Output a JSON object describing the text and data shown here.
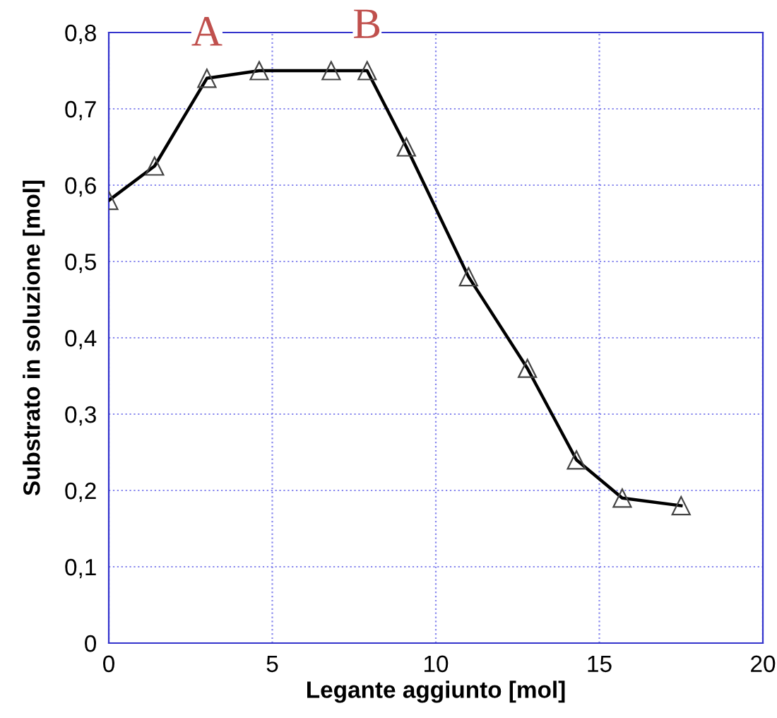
{
  "chart_data": {
    "type": "line",
    "xlabel": "Legante aggiunto [mol]",
    "ylabel": "Substrato in soluzione [mol]",
    "x": [
      0,
      1.4,
      3.0,
      4.6,
      6.8,
      7.9,
      9.1,
      11.0,
      12.8,
      14.3,
      15.7,
      17.5
    ],
    "series": [
      {
        "color": "#000000",
        "values": [
          0.58,
          0.625,
          0.74,
          0.75,
          0.75,
          0.75,
          0.65,
          0.48,
          0.36,
          0.24,
          0.19,
          0.18
        ]
      }
    ],
    "marker": "triangle",
    "grid": true,
    "xlim": [
      0,
      20
    ],
    "xticks": [
      0,
      5,
      10,
      15,
      20
    ],
    "ylim": [
      0,
      0.8
    ],
    "yticks": [
      0,
      {
        "value": 0.1,
        "label": "0,1"
      },
      {
        "value": 0.2,
        "label": "0,2"
      },
      {
        "value": 0.3,
        "label": "0,3"
      },
      {
        "value": 0.4,
        "label": "0,4"
      },
      {
        "value": 0.5,
        "label": "0,5"
      },
      {
        "value": 0.6,
        "label": "0,6"
      },
      {
        "value": 0.7,
        "label": "0,7"
      },
      {
        "value": 0.8,
        "label": "0,8"
      }
    ],
    "annotations": [
      {
        "text": "A",
        "x": 3.0,
        "y": 0.74
      },
      {
        "text": "B",
        "x": 7.9,
        "y": 0.75
      }
    ]
  }
}
